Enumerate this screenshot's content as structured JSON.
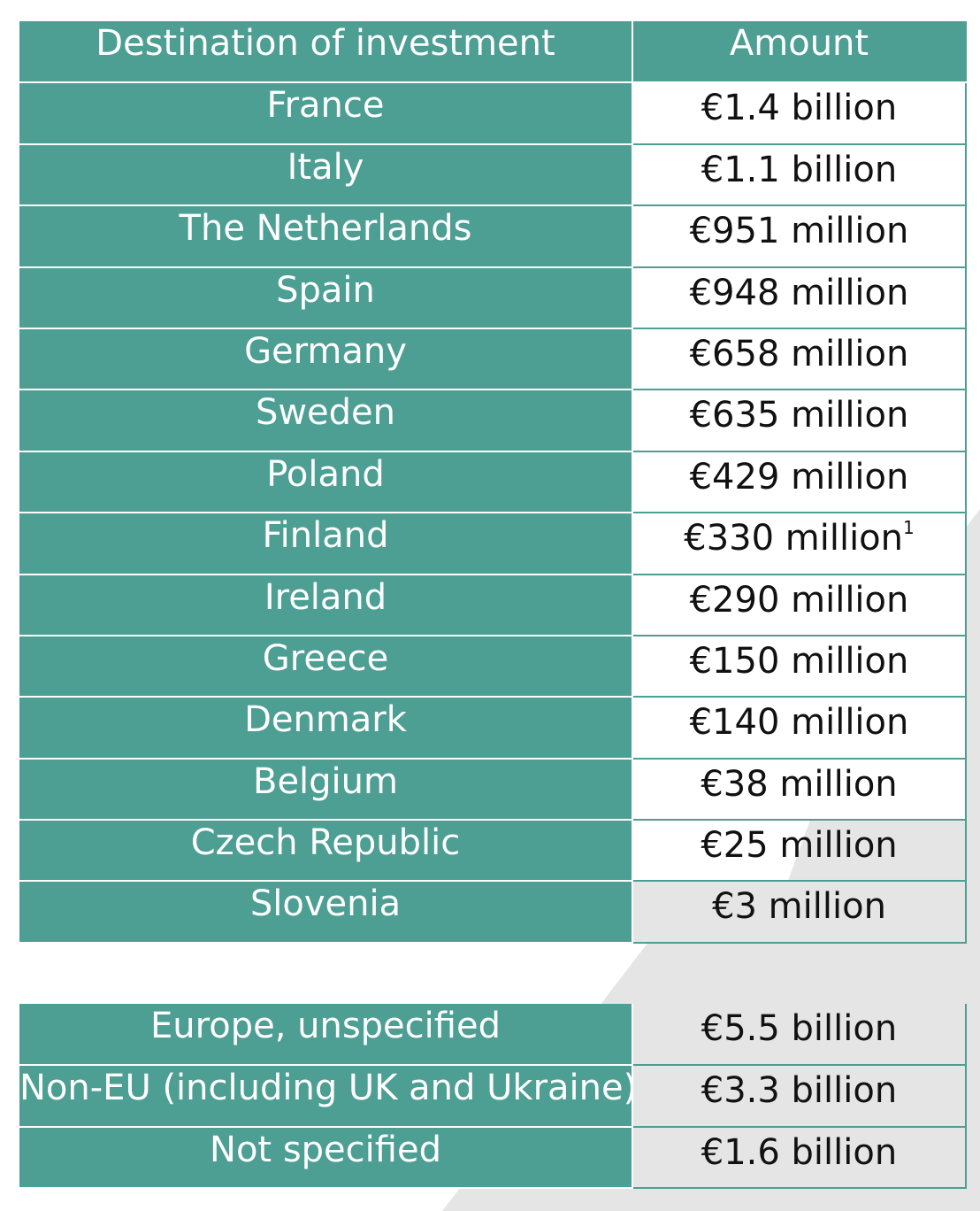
{
  "table": {
    "headers": [
      "Destination of investment",
      "Amount"
    ],
    "rows": [
      {
        "destination": "France",
        "amount": "€1.4 billion"
      },
      {
        "destination": "Italy",
        "amount": "€1.1 billion"
      },
      {
        "destination": "The Netherlands",
        "amount": "€951 million"
      },
      {
        "destination": "Spain",
        "amount": "€948 million"
      },
      {
        "destination": "Germany",
        "amount": "€658 million"
      },
      {
        "destination": "Sweden",
        "amount": "€635 million"
      },
      {
        "destination": "Poland",
        "amount": "€429 million"
      },
      {
        "destination": "Finland",
        "amount": "€330 million",
        "footnote": "1"
      },
      {
        "destination": "Ireland",
        "amount": "€290 million"
      },
      {
        "destination": "Greece",
        "amount": "€150 million"
      },
      {
        "destination": "Denmark",
        "amount": "€140 million"
      },
      {
        "destination": "Belgium",
        "amount": "€38 million"
      },
      {
        "destination": "Czech Republic",
        "amount": "€25 million"
      },
      {
        "destination": "Slovenia",
        "amount": "€3 million"
      }
    ]
  },
  "other_table": {
    "rows": [
      {
        "destination": "Europe, unspecified",
        "amount": "€5.5 billion"
      },
      {
        "destination": "Non-EU (including UK and Ukraine)",
        "amount": "€3.3 billion"
      },
      {
        "destination": "Not specified",
        "amount": "€1.6 billion"
      }
    ]
  },
  "colors": {
    "teal": "#4d9e93",
    "grey_band": "#e5e5e5"
  }
}
